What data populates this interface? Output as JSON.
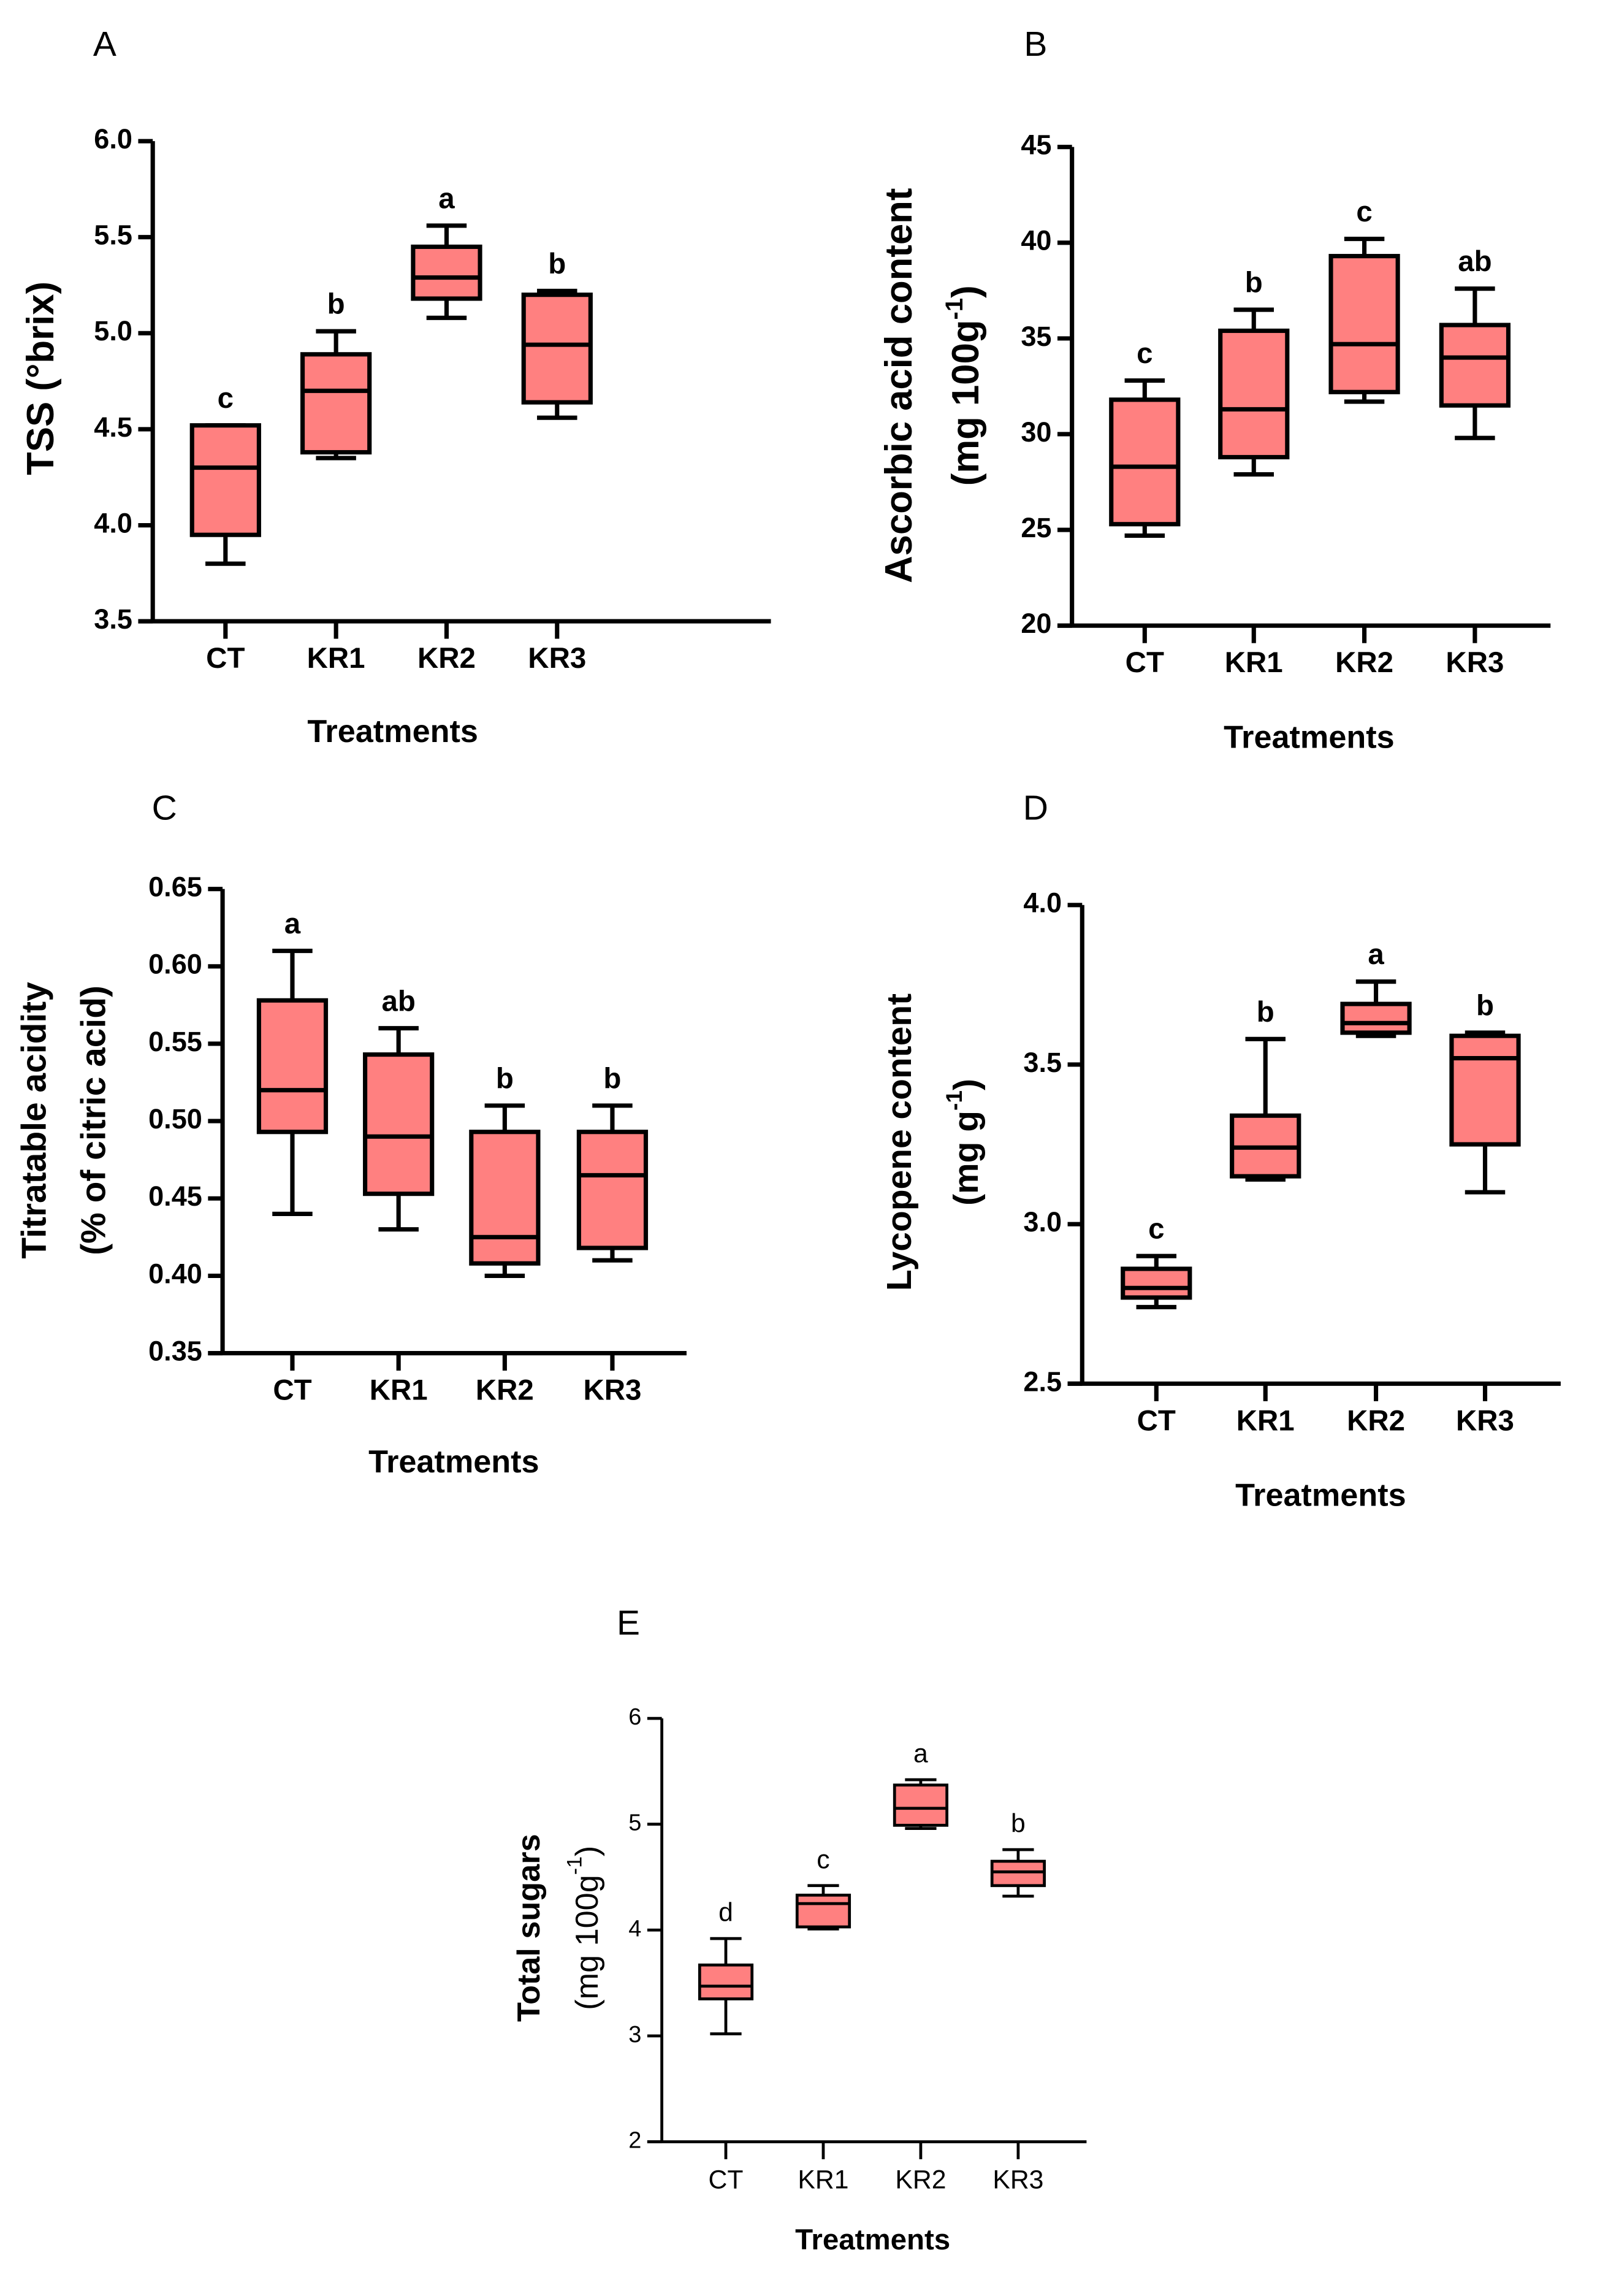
{
  "chart_data": [
    {
      "type": "box",
      "panel": "A",
      "ylabel": [
        "TSS (°brix)"
      ],
      "ylabel_sup": [
        "",
        ""
      ],
      "ylabel_post": [
        "",
        ""
      ],
      "xlabel": "Treatments",
      "ylim": [
        3.5,
        6.0
      ],
      "yticks": [
        "3.5",
        "4.0",
        "4.5",
        "5.0",
        "5.5",
        "6.0"
      ],
      "categories": [
        "CT",
        "KR1",
        "KR2",
        "KR3"
      ],
      "boxes": [
        {
          "min": 3.8,
          "q1": 3.95,
          "median": 4.3,
          "q3": 4.52,
          "max": 4.52,
          "letter": "c"
        },
        {
          "min": 4.35,
          "q1": 4.38,
          "median": 4.7,
          "q3": 4.89,
          "max": 5.01,
          "letter": "b"
        },
        {
          "min": 5.08,
          "q1": 5.18,
          "median": 5.29,
          "q3": 5.45,
          "max": 5.56,
          "letter": "a"
        },
        {
          "min": 4.56,
          "q1": 4.64,
          "median": 4.94,
          "q3": 5.2,
          "max": 5.22,
          "letter": "b"
        }
      ]
    },
    {
      "type": "box",
      "panel": "B",
      "ylabel": [
        "Ascorbic acid content",
        "(mg 100g"
      ],
      "ylabel_sup": [
        "",
        "-1"
      ],
      "ylabel_post": [
        "",
        ")"
      ],
      "xlabel": "Treatments",
      "ylim": [
        20,
        45
      ],
      "yticks": [
        "20",
        "25",
        "30",
        "35",
        "40",
        "45"
      ],
      "categories": [
        "CT",
        "KR1",
        "KR2",
        "KR3"
      ],
      "boxes": [
        {
          "min": 24.7,
          "q1": 25.3,
          "median": 28.3,
          "q3": 31.8,
          "max": 32.8,
          "letter": "c"
        },
        {
          "min": 27.9,
          "q1": 28.8,
          "median": 31.3,
          "q3": 35.4,
          "max": 36.5,
          "letter": "b"
        },
        {
          "min": 31.7,
          "q1": 32.2,
          "median": 34.7,
          "q3": 39.3,
          "max": 40.2,
          "letter": "c"
        },
        {
          "min": 29.8,
          "q1": 31.5,
          "median": 34.0,
          "q3": 35.7,
          "max": 37.6,
          "letter": "ab"
        }
      ]
    },
    {
      "type": "box",
      "panel": "C",
      "ylabel": [
        "Titratable acidity",
        "(% of citric acid)"
      ],
      "ylabel_sup": [
        "",
        ""
      ],
      "ylabel_post": [
        "",
        ""
      ],
      "xlabel": "Treatments",
      "ylim": [
        0.35,
        0.65
      ],
      "yticks": [
        "0.35",
        "0.40",
        "0.45",
        "0.50",
        "0.55",
        "0.60",
        "0.65"
      ],
      "categories": [
        "CT",
        "KR1",
        "KR2",
        "KR3"
      ],
      "boxes": [
        {
          "min": 0.44,
          "q1": 0.493,
          "median": 0.52,
          "q3": 0.578,
          "max": 0.61,
          "letter": "a"
        },
        {
          "min": 0.43,
          "q1": 0.453,
          "median": 0.49,
          "q3": 0.543,
          "max": 0.56,
          "letter": "ab"
        },
        {
          "min": 0.4,
          "q1": 0.408,
          "median": 0.425,
          "q3": 0.493,
          "max": 0.51,
          "letter": "b"
        },
        {
          "min": 0.41,
          "q1": 0.418,
          "median": 0.465,
          "q3": 0.493,
          "max": 0.51,
          "letter": "b"
        }
      ]
    },
    {
      "type": "box",
      "panel": "D",
      "ylabel": [
        "Lycopene content",
        "(mg g"
      ],
      "ylabel_sup": [
        "",
        "-1"
      ],
      "ylabel_post": [
        "",
        ")"
      ],
      "xlabel": "Treatments",
      "ylim": [
        2.5,
        4.0
      ],
      "yticks": [
        "2.5",
        "3.0",
        "3.5",
        "4.0"
      ],
      "categories": [
        "CT",
        "KR1",
        "KR2",
        "KR3"
      ],
      "boxes": [
        {
          "min": 2.74,
          "q1": 2.77,
          "median": 2.8,
          "q3": 2.86,
          "max": 2.9,
          "letter": "c"
        },
        {
          "min": 3.14,
          "q1": 3.15,
          "median": 3.24,
          "q3": 3.34,
          "max": 3.58,
          "letter": "b"
        },
        {
          "min": 3.59,
          "q1": 3.6,
          "median": 3.63,
          "q3": 3.69,
          "max": 3.76,
          "letter": "a"
        },
        {
          "min": 3.1,
          "q1": 3.25,
          "median": 3.52,
          "q3": 3.59,
          "max": 3.6,
          "letter": "b"
        }
      ]
    },
    {
      "type": "box",
      "panel": "E",
      "ylabel": [
        "Total sugars",
        "(mg 100g"
      ],
      "ylabel_sup": [
        "",
        "-1"
      ],
      "ylabel_post": [
        "",
        ")"
      ],
      "xlabel": "Treatments",
      "ylim": [
        2,
        6
      ],
      "yticks": [
        "2",
        "3",
        "4",
        "5",
        "6"
      ],
      "categories": [
        "CT",
        "KR1",
        "KR2",
        "KR3"
      ],
      "boxes": [
        {
          "min": 3.02,
          "q1": 3.35,
          "median": 3.47,
          "q3": 3.67,
          "max": 3.92,
          "letter": "d"
        },
        {
          "min": 4.01,
          "q1": 4.03,
          "median": 4.25,
          "q3": 4.33,
          "max": 4.42,
          "letter": "c"
        },
        {
          "min": 4.96,
          "q1": 4.99,
          "median": 5.15,
          "q3": 5.37,
          "max": 5.42,
          "letter": "a"
        },
        {
          "min": 4.32,
          "q1": 4.42,
          "median": 4.55,
          "q3": 4.65,
          "max": 4.76,
          "letter": "b"
        }
      ]
    }
  ],
  "colors": {
    "box_fill": "#ff8080",
    "stroke": "#000000"
  }
}
